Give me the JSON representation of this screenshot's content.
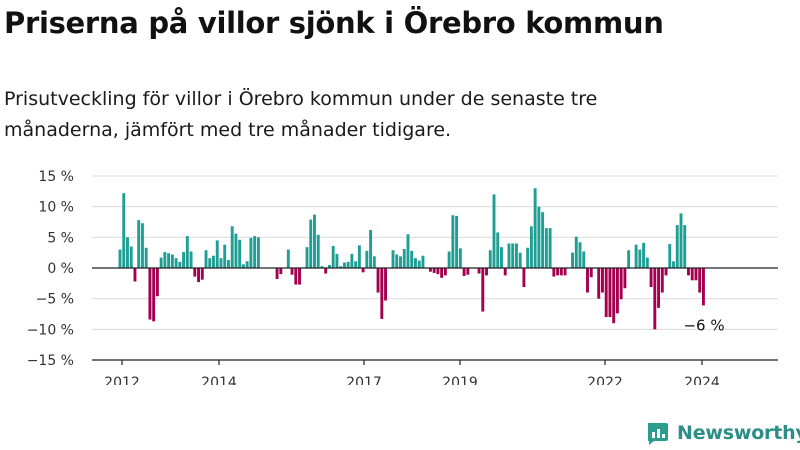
{
  "title": "Priserna på villor sjönk i Örebro kommun",
  "subtitle": "Prisutveckling för villor i Örebro kommun under de senaste tre månaderna, jämfört med tre månader tidigare.",
  "brand": {
    "name": "Newsworthy",
    "color": "#2a9d8f"
  },
  "chart_data": {
    "type": "bar",
    "title": "",
    "xlabel": "",
    "ylabel": "",
    "ylim": [
      -15,
      15
    ],
    "yticks": [
      15,
      10,
      5,
      0,
      -5,
      -10,
      -15
    ],
    "ytick_labels": [
      "15 %",
      "10 %",
      "5 %",
      "0 %",
      "−5 %",
      "−10 %",
      "−15 %"
    ],
    "xticks": [
      "2012",
      "2014",
      "2017",
      "2019",
      "2022",
      "2024"
    ],
    "grid": true,
    "legend": "none",
    "colors": {
      "positive": "#1f9e93",
      "negative": "#a4004f"
    },
    "annotation": "−6 %",
    "values": [
      3,
      12.2,
      5,
      3.5,
      -2.2,
      7.8,
      7.3,
      3.3,
      -8.4,
      -8.7,
      -4.6,
      1.7,
      2.6,
      2.4,
      2.2,
      1.6,
      1,
      2.6,
      5.2,
      2.7,
      -1.4,
      -2.3,
      -1.9,
      2.9,
      1.6,
      2,
      4.5,
      1.6,
      3.8,
      1.3,
      6.8,
      5.6,
      4.6,
      0.6,
      1.1,
      4.9,
      5.2,
      5,
      0,
      0,
      0,
      0,
      -1.8,
      -1,
      0,
      3,
      -1.1,
      -2.7,
      -2.7,
      0,
      3.4,
      7.9,
      8.7,
      5.4,
      0.3,
      -0.9,
      0.5,
      3.6,
      2.3,
      0.3,
      0.9,
      1,
      2.3,
      1.1,
      3.7,
      -0.7,
      2.8,
      6.2,
      1.9,
      -4,
      -8.3,
      -5.3,
      0,
      2.9,
      2.2,
      1.9,
      3.1,
      5.5,
      2.8,
      1.6,
      1.2,
      2,
      0,
      -0.6,
      -0.8,
      -1,
      -1.6,
      -1.2,
      2.7,
      8.6,
      8.5,
      3.2,
      -1.3,
      -1.1,
      0,
      0,
      -0.9,
      -7.1,
      -1.2,
      2.9,
      12,
      5.8,
      3.4,
      -1.2,
      4,
      4,
      4,
      2.5,
      -3.1,
      3.3,
      6.8,
      13,
      10,
      9.1,
      6.5,
      6.5,
      -1.4,
      -1.2,
      -1.2,
      -1.2,
      0,
      2.5,
      5.1,
      4.2,
      2.7,
      -4,
      -1.5,
      0,
      -5,
      -4,
      -8,
      -8,
      -9,
      -7.4,
      -5.1,
      -3.3,
      2.9,
      0,
      3.8,
      3,
      4.1,
      1.7,
      -3.1,
      -10,
      -6.5,
      -4,
      -1.2,
      3.9,
      1.1,
      7,
      8.9,
      7,
      -1.2,
      -2,
      -2,
      -4,
      -6.1
    ]
  }
}
